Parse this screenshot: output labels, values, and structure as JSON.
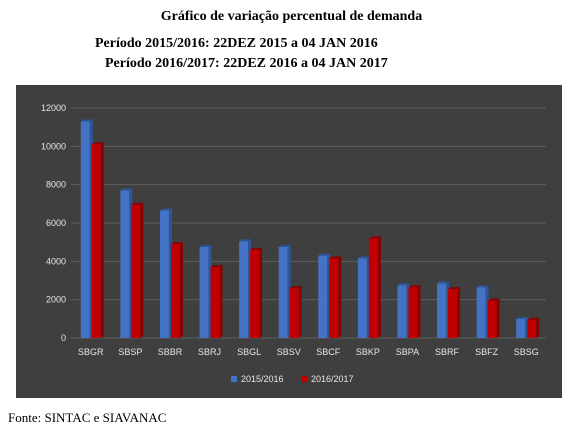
{
  "header": {
    "title": "Gráfico de variação percentual de demanda",
    "period1": "Período 2015/2016:  22DEZ 2015 a 04 JAN 2016",
    "period2": "Período 2016/2017:  22DEZ 2016 a 04 JAN 2017"
  },
  "footer": {
    "source": "Fonte: SINTAC e SIAVANAC"
  },
  "chart_data": {
    "type": "bar",
    "categories": [
      "SBGR",
      "SBSP",
      "SBBR",
      "SBRJ",
      "SBGL",
      "SBSV",
      "SBCF",
      "SBKP",
      "SBPA",
      "SBRF",
      "SBFZ",
      "SBSG"
    ],
    "series": [
      {
        "name": "2015/2016",
        "color": "#4472c4",
        "values": [
          11300,
          7700,
          6650,
          4750,
          5050,
          4750,
          4300,
          4150,
          2750,
          2850,
          2650,
          1000
        ]
      },
      {
        "name": "2016/2017",
        "color": "#c00000",
        "values": [
          10100,
          6950,
          4900,
          3700,
          4600,
          2600,
          4150,
          5200,
          2650,
          2550,
          1950,
          950
        ]
      }
    ],
    "yticks": [
      "0",
      "2000",
      "4000",
      "6000",
      "8000",
      "10000",
      "12000"
    ],
    "ylim": [
      0,
      12000
    ],
    "grid": true,
    "legend": "bottom"
  }
}
